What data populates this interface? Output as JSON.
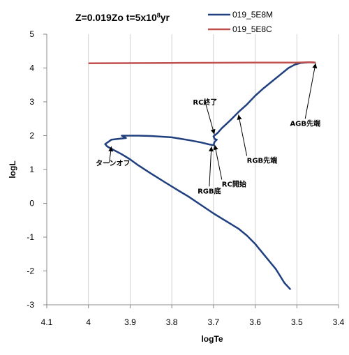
{
  "chart_data": {
    "type": "line",
    "title_main": "Z=0.019Zo t=5x10",
    "title_exp": "8",
    "title_unit": "yr",
    "xlabel": "logTe",
    "ylabel": "logL",
    "xlim": [
      4.1,
      3.4
    ],
    "ylim": [
      -3,
      5
    ],
    "x_reversed": true,
    "xticks": [
      "4.1",
      "4",
      "3.9",
      "3.8",
      "3.7",
      "3.6",
      "3.5",
      "3.4"
    ],
    "yticks": [
      "5",
      "4",
      "3",
      "2",
      "1",
      "0",
      "-1",
      "-2",
      "-3"
    ],
    "grid": "vertical",
    "legend_position": "top-right",
    "series": [
      {
        "name": "019_5E8M",
        "color": "#1f3f7f",
        "x": [
          3.515,
          3.53,
          3.55,
          3.58,
          3.6,
          3.62,
          3.64,
          3.66,
          3.68,
          3.7,
          3.73,
          3.76,
          3.79,
          3.82,
          3.85,
          3.88,
          3.9,
          3.92,
          3.94,
          3.955,
          3.96,
          3.945,
          3.93,
          3.91,
          3.92,
          3.9,
          3.88,
          3.85,
          3.8,
          3.76,
          3.73,
          3.71,
          3.7,
          3.698,
          3.695,
          3.692,
          3.697,
          3.7,
          3.69,
          3.68,
          3.66,
          3.64,
          3.62,
          3.6,
          3.58,
          3.56,
          3.54,
          3.52,
          3.505,
          3.49,
          3.47,
          3.455
        ],
        "y": [
          -2.55,
          -2.35,
          -1.95,
          -1.5,
          -1.2,
          -0.95,
          -0.75,
          -0.6,
          -0.45,
          -0.3,
          -0.05,
          0.2,
          0.42,
          0.65,
          0.88,
          1.12,
          1.3,
          1.45,
          1.58,
          1.68,
          1.75,
          1.88,
          1.9,
          1.93,
          2.0,
          2.0,
          2.0,
          1.99,
          1.95,
          1.87,
          1.8,
          1.74,
          1.72,
          1.8,
          1.85,
          1.88,
          1.9,
          1.98,
          2.08,
          2.22,
          2.45,
          2.7,
          2.92,
          3.18,
          3.4,
          3.6,
          3.8,
          4.0,
          4.1,
          4.15,
          4.17,
          4.16
        ]
      },
      {
        "name": "019_5E8C",
        "color": "#c0504d",
        "x": [
          4.0,
          3.9,
          3.8,
          3.7,
          3.6,
          3.5,
          3.47,
          3.455
        ],
        "y": [
          4.14,
          4.145,
          4.15,
          4.155,
          4.16,
          4.16,
          4.17,
          4.16
        ]
      }
    ],
    "annotations": [
      {
        "text": "ターンオフ",
        "x": 3.95,
        "y": 1.2
      },
      {
        "text": "RC終了",
        "x": 3.72,
        "y": 3.0
      },
      {
        "text": "RGB底",
        "x": 3.71,
        "y": 0.5
      },
      {
        "text": "RC開始",
        "x": 3.68,
        "y": 0.7
      },
      {
        "text": "RGB先端",
        "x": 3.62,
        "y": 1.4
      },
      {
        "text": "AGB先端",
        "x": 3.48,
        "y": 2.5
      }
    ]
  }
}
